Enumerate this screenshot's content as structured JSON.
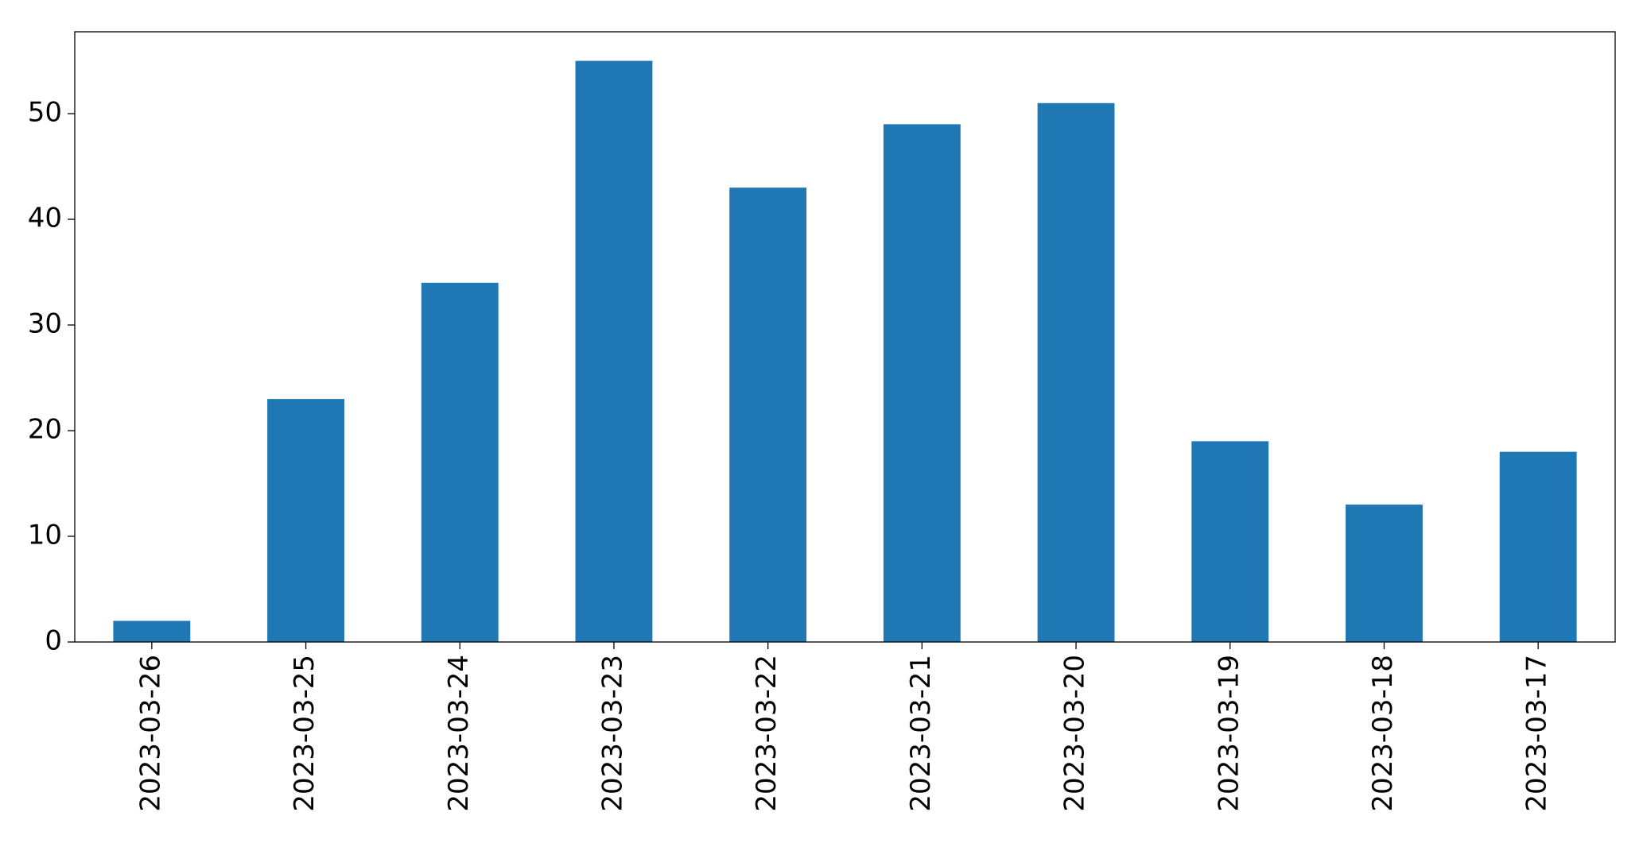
{
  "chart_data": {
    "type": "bar",
    "categories": [
      "2023-03-26",
      "2023-03-25",
      "2023-03-24",
      "2023-03-23",
      "2023-03-22",
      "2023-03-21",
      "2023-03-20",
      "2023-03-19",
      "2023-03-18",
      "2023-03-17"
    ],
    "values": [
      2,
      23,
      34,
      55,
      43,
      49,
      51,
      19,
      13,
      18
    ],
    "color": "#1f77b4",
    "ylim": [
      0,
      57.75
    ],
    "yticks": [
      0,
      10,
      20,
      30,
      40,
      50
    ],
    "grid": false
  }
}
